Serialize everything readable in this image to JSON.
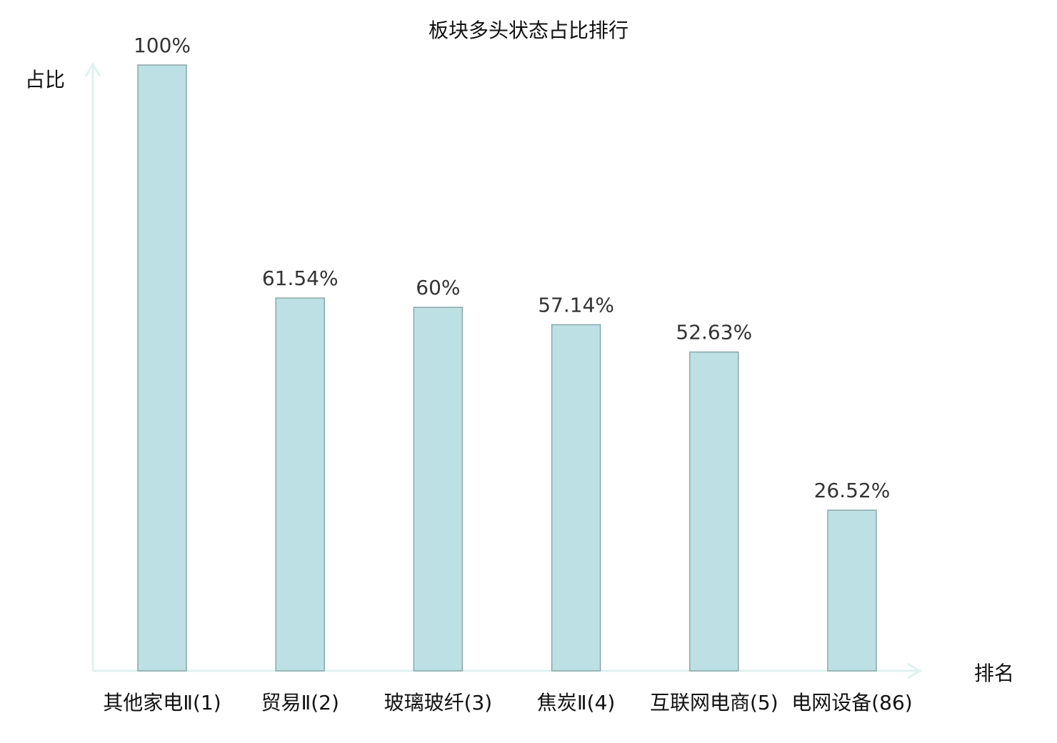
{
  "chart_data": {
    "type": "bar",
    "title": "板块多头状态占比排行",
    "xlabel": "排名",
    "ylabel": "占比",
    "categories": [
      "其他家电Ⅱ(1)",
      "贸易Ⅱ(2)",
      "玻璃玻纤(3)",
      "焦炭Ⅱ(4)",
      "互联网电商(5)",
      "电网设备(86)"
    ],
    "values": [
      100,
      61.54,
      60,
      57.14,
      52.63,
      26.52
    ],
    "data_labels": [
      "100%",
      "61.54%",
      "60%",
      "57.14%",
      "52.63%",
      "26.52%"
    ],
    "ylim": [
      0,
      100
    ],
    "grid": false,
    "legend": "none",
    "highlight_index": 5,
    "colors": {
      "bar_fill": "#bce0e3",
      "bar_stroke": "#8aa8aa",
      "axis": "#dff2ef",
      "highlight_label": "#e00000",
      "text": "#111111"
    }
  }
}
